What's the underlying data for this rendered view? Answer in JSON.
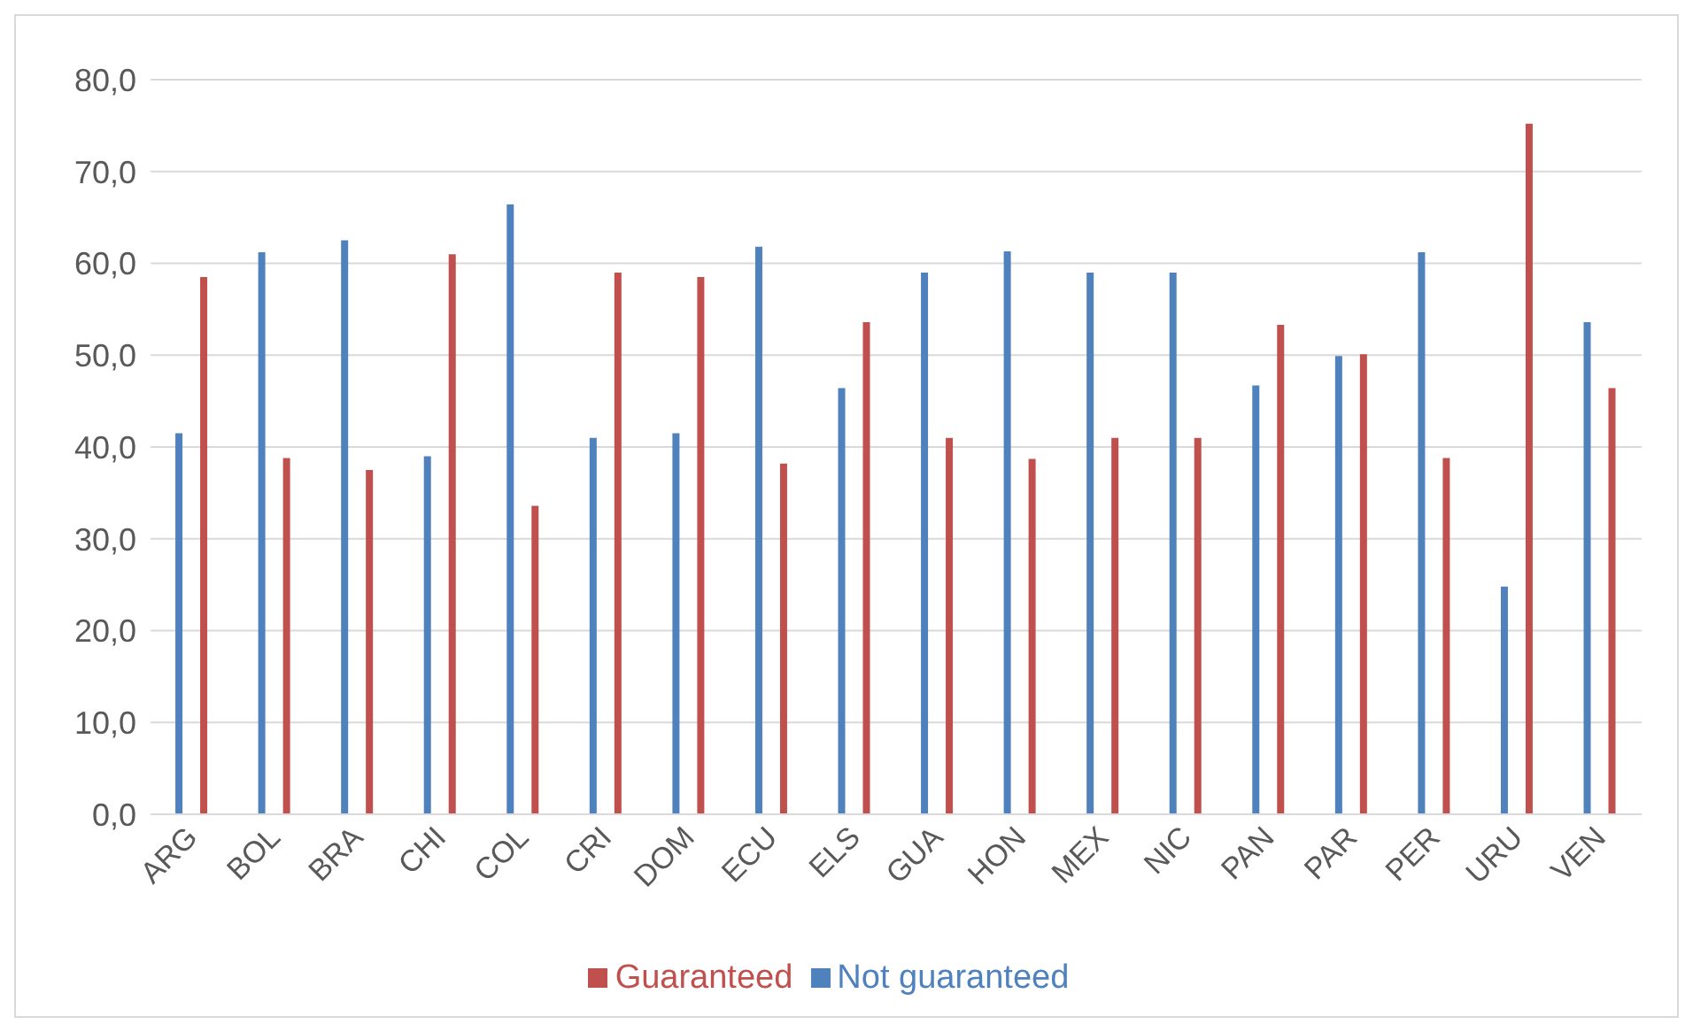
{
  "chart_data": {
    "type": "bar",
    "categories": [
      "ARG",
      "BOL",
      "BRA",
      "CHI",
      "COL",
      "CRI",
      "DOM",
      "ECU",
      "ELS",
      "GUA",
      "HON",
      "MEX",
      "NIC",
      "PAN",
      "PAR",
      "PER",
      "URU",
      "VEN"
    ],
    "series": [
      {
        "name": "Not guaranteed",
        "color": "#4f81bd",
        "values": [
          41.5,
          61.2,
          62.5,
          39.0,
          66.4,
          41.0,
          41.5,
          61.8,
          46.4,
          59.0,
          61.3,
          59.0,
          59.0,
          46.7,
          49.9,
          61.2,
          24.8,
          53.6
        ]
      },
      {
        "name": "Guaranteed",
        "color": "#c0504d",
        "values": [
          58.5,
          38.8,
          37.5,
          61.0,
          33.6,
          59.0,
          58.5,
          38.2,
          53.6,
          41.0,
          38.7,
          41.0,
          41.0,
          53.3,
          50.1,
          38.8,
          75.2,
          46.4
        ]
      }
    ],
    "ylim": [
      0,
      80
    ],
    "yticks": [
      {
        "value": 0,
        "label": "0,0"
      },
      {
        "value": 10,
        "label": "10,0"
      },
      {
        "value": 20,
        "label": "20,0"
      },
      {
        "value": 30,
        "label": "30,0"
      },
      {
        "value": 40,
        "label": "40,0"
      },
      {
        "value": 50,
        "label": "50,0"
      },
      {
        "value": 60,
        "label": "60,0"
      },
      {
        "value": 70,
        "label": "70,0"
      },
      {
        "value": 80,
        "label": "80,0"
      }
    ],
    "grid": "y",
    "legend": "bottom"
  }
}
